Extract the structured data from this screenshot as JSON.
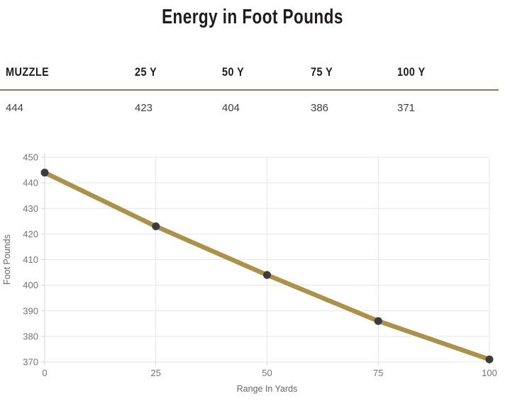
{
  "title": "Energy in Foot Pounds",
  "accent_color": "#857B55",
  "table": {
    "headers": [
      "MUZZLE",
      "25 Y",
      "50 Y",
      "75 Y",
      "100 Y"
    ],
    "values": [
      "444",
      "423",
      "404",
      "386",
      "371"
    ]
  },
  "chart_data": {
    "type": "line",
    "x": [
      0,
      25,
      50,
      75,
      100
    ],
    "values": [
      444,
      423,
      404,
      386,
      371
    ],
    "title": "",
    "xlabel": "Range In Yards",
    "ylabel": "Foot Pounds",
    "xlim": [
      0,
      100
    ],
    "ylim": [
      370,
      450
    ],
    "xticks": [
      0,
      25,
      50,
      75,
      100
    ],
    "ytick_step": 10,
    "grid": true,
    "legend": "none",
    "line_color": "#AB9149",
    "point_color": "#3C3C3C",
    "grid_color": "#E6E6E6",
    "axis_color": "#D6D6D6",
    "tick_label_color": "#757575",
    "axis_label_color": "#666666"
  }
}
